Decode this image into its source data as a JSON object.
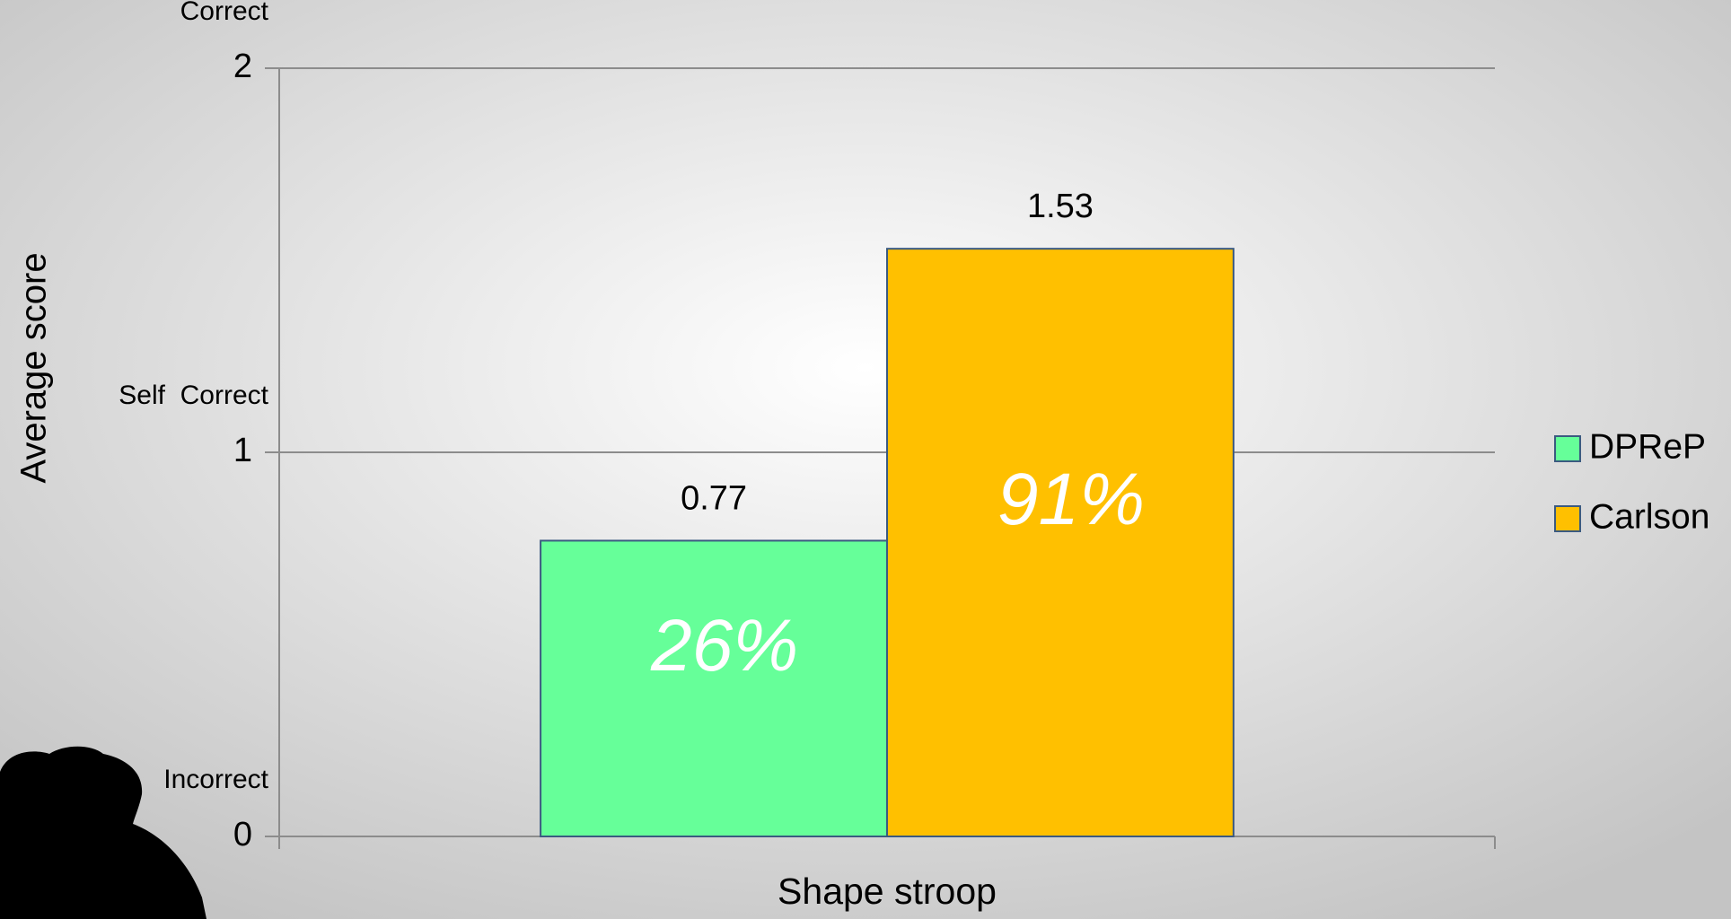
{
  "chart_data": {
    "type": "bar",
    "categories": [
      "Shape stroop"
    ],
    "series": [
      {
        "name": "DPReP",
        "color": "#66ff99",
        "values": [
          0.77
        ],
        "annotation": "26%"
      },
      {
        "name": "Carlson",
        "color": "#ffc000",
        "values": [
          1.53
        ],
        "annotation": "91%"
      }
    ],
    "y_axis_label": "Average score",
    "ylim": [
      0,
      2
    ],
    "yticks": [
      0,
      1,
      2
    ],
    "y_level_labels": [
      {
        "value": 0,
        "label": "Incorrect"
      },
      {
        "value": 1,
        "label": "Self  Correct"
      },
      {
        "value": 2,
        "label": "Correct"
      }
    ],
    "grid": true,
    "legend": "right"
  }
}
